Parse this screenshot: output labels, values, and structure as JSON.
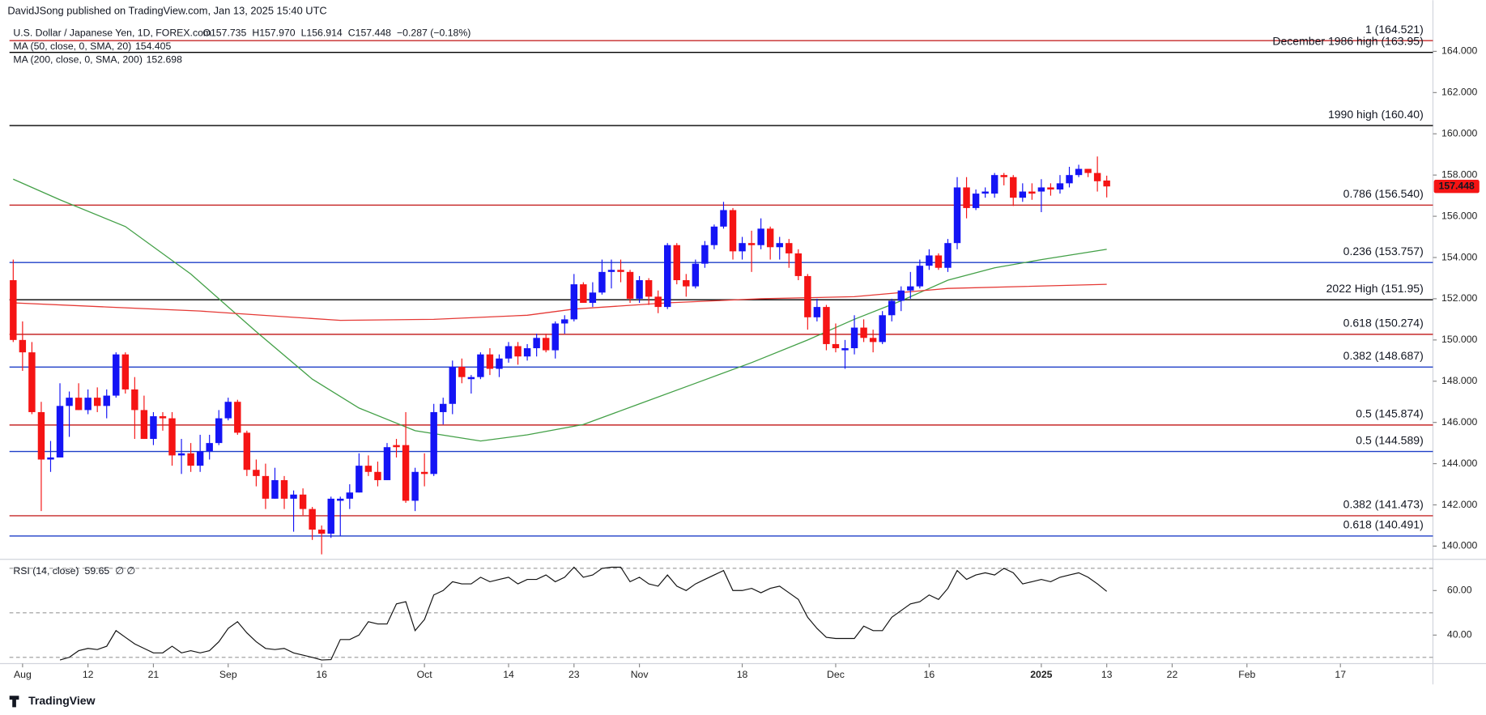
{
  "header": {
    "publisher": "DavidJSong published on TradingView.com, Jan 13, 2025 15:40 UTC",
    "footer": "TradingView"
  },
  "chart_data": {
    "type": "candlestick",
    "title": "U.S. Dollar / Japanese Yen, 1D, FOREX.com",
    "quote": [
      "O157.735",
      "H157.970",
      "L156.914",
      "C157.448",
      "−0.287 (−0.18%)"
    ],
    "colors": {
      "up": "#1414f5",
      "down": "#f51414"
    },
    "xlim": [
      -0.4,
      151.9
    ],
    "xticks": [
      {
        "value": 1,
        "label": "Aug"
      },
      {
        "value": 8,
        "label": "12"
      },
      {
        "value": 15,
        "label": "21"
      },
      {
        "value": 23,
        "label": "Sep"
      },
      {
        "value": 33,
        "label": "16"
      },
      {
        "value": 44,
        "label": "Oct"
      },
      {
        "value": 53,
        "label": "14"
      },
      {
        "value": 60,
        "label": "23"
      },
      {
        "value": 67,
        "label": "Nov"
      },
      {
        "value": 78,
        "label": "18"
      },
      {
        "value": 88,
        "label": "Dec"
      },
      {
        "value": 98,
        "label": "16"
      },
      {
        "value": 110,
        "label": "2025"
      },
      {
        "value": 117,
        "label": "13"
      },
      {
        "value": 124,
        "label": "22"
      },
      {
        "value": 132,
        "label": "Feb"
      },
      {
        "value": 142,
        "label": "17"
      }
    ],
    "ylim": [
      139.45,
      165.56
    ],
    "yticks": [
      {
        "value": 140,
        "label": "140.000"
      },
      {
        "value": 142,
        "label": "142.000"
      },
      {
        "value": 144,
        "label": "144.000"
      },
      {
        "value": 146,
        "label": "146.000"
      },
      {
        "value": 148,
        "label": "148.000"
      },
      {
        "value": 150,
        "label": "150.000"
      },
      {
        "value": 152,
        "label": "152.000"
      },
      {
        "value": 154,
        "label": "154.000"
      },
      {
        "value": 156,
        "label": "156.000"
      },
      {
        "value": 158,
        "label": "158.000"
      },
      {
        "value": 160,
        "label": "160.000"
      },
      {
        "value": 162,
        "label": "162.000"
      },
      {
        "value": 164,
        "label": "164.000"
      }
    ],
    "ohlc": [
      [
        152.9,
        153.9,
        149.9,
        150.0
      ],
      [
        150.0,
        150.9,
        148.5,
        149.4
      ],
      [
        149.4,
        149.9,
        146.4,
        146.5
      ],
      [
        146.5,
        147.0,
        141.7,
        144.2
      ],
      [
        144.2,
        145.1,
        143.6,
        144.3
      ],
      [
        144.3,
        147.9,
        144.3,
        146.8
      ],
      [
        146.8,
        147.5,
        145.3,
        147.2
      ],
      [
        147.2,
        147.9,
        146.6,
        146.6
      ],
      [
        146.6,
        147.6,
        146.4,
        147.2
      ],
      [
        147.2,
        147.7,
        146.5,
        146.8
      ],
      [
        146.8,
        147.6,
        146.2,
        147.3
      ],
      [
        147.3,
        149.4,
        147.2,
        149.3
      ],
      [
        149.3,
        149.4,
        147.4,
        147.6
      ],
      [
        147.6,
        148.2,
        145.2,
        146.6
      ],
      [
        146.6,
        147.3,
        145.2,
        145.2
      ],
      [
        145.2,
        146.5,
        144.9,
        146.3
      ],
      [
        146.3,
        146.5,
        145.6,
        146.2
      ],
      [
        146.2,
        146.5,
        143.9,
        144.4
      ],
      [
        144.4,
        145.2,
        143.5,
        144.5
      ],
      [
        144.5,
        145.0,
        143.6,
        143.9
      ],
      [
        143.9,
        145.4,
        143.6,
        144.6
      ],
      [
        144.6,
        145.4,
        144.2,
        145.0
      ],
      [
        145.0,
        146.6,
        144.9,
        146.2
      ],
      [
        146.2,
        147.2,
        146.1,
        147.0
      ],
      [
        147.0,
        147.1,
        145.4,
        145.5
      ],
      [
        145.5,
        145.6,
        143.4,
        143.7
      ],
      [
        143.7,
        144.2,
        142.9,
        143.4
      ],
      [
        143.4,
        144.0,
        141.8,
        142.3
      ],
      [
        142.3,
        143.8,
        142.3,
        143.2
      ],
      [
        143.2,
        143.4,
        141.8,
        142.3
      ],
      [
        142.3,
        142.7,
        140.7,
        142.5
      ],
      [
        142.5,
        142.8,
        141.5,
        141.8
      ],
      [
        141.8,
        141.9,
        140.3,
        140.8
      ],
      [
        140.8,
        141.0,
        139.6,
        140.6
      ],
      [
        140.6,
        142.4,
        140.4,
        142.3
      ],
      [
        142.2,
        142.4,
        140.5,
        142.3
      ],
      [
        142.3,
        143.0,
        141.8,
        142.6
      ],
      [
        142.6,
        144.5,
        142.6,
        143.9
      ],
      [
        143.9,
        144.4,
        143.4,
        143.6
      ],
      [
        143.6,
        144.1,
        142.9,
        143.2
      ],
      [
        143.2,
        145.0,
        143.2,
        144.8
      ],
      [
        144.9,
        145.2,
        144.3,
        144.8
      ],
      [
        144.9,
        146.5,
        142.1,
        142.2
      ],
      [
        142.2,
        143.8,
        141.7,
        143.6
      ],
      [
        143.6,
        144.5,
        142.9,
        143.5
      ],
      [
        143.5,
        146.9,
        143.4,
        146.5
      ],
      [
        146.5,
        147.2,
        145.9,
        146.9
      ],
      [
        146.9,
        149.0,
        146.4,
        148.7
      ],
      [
        148.7,
        149.1,
        147.9,
        148.2
      ],
      [
        148.1,
        148.3,
        147.4,
        148.2
      ],
      [
        148.2,
        149.4,
        148.1,
        149.3
      ],
      [
        149.3,
        149.6,
        148.3,
        148.6
      ],
      [
        148.6,
        149.3,
        148.2,
        149.1
      ],
      [
        149.1,
        149.9,
        148.9,
        149.7
      ],
      [
        149.7,
        149.9,
        148.8,
        149.2
      ],
      [
        149.2,
        149.8,
        149.0,
        149.6
      ],
      [
        149.6,
        150.3,
        149.2,
        150.1
      ],
      [
        150.1,
        150.3,
        149.4,
        149.5
      ],
      [
        149.5,
        150.9,
        149.1,
        150.8
      ],
      [
        150.8,
        151.2,
        150.3,
        151.0
      ],
      [
        151.0,
        153.2,
        150.9,
        152.7
      ],
      [
        152.7,
        152.8,
        151.8,
        151.8
      ],
      [
        151.8,
        152.8,
        151.6,
        152.3
      ],
      [
        152.3,
        153.9,
        152.2,
        153.3
      ],
      [
        153.3,
        153.9,
        152.5,
        153.4
      ],
      [
        153.4,
        153.9,
        152.8,
        153.3
      ],
      [
        153.3,
        153.4,
        151.8,
        152.0
      ],
      [
        152.0,
        153.1,
        151.8,
        152.9
      ],
      [
        152.9,
        153.0,
        151.7,
        152.1
      ],
      [
        152.1,
        152.4,
        151.3,
        151.6
      ],
      [
        151.6,
        154.7,
        151.5,
        154.6
      ],
      [
        154.6,
        154.7,
        152.7,
        152.9
      ],
      [
        152.9,
        153.2,
        152.1,
        152.6
      ],
      [
        152.6,
        153.9,
        152.5,
        153.7
      ],
      [
        153.7,
        154.8,
        153.5,
        154.6
      ],
      [
        154.6,
        155.6,
        154.4,
        155.5
      ],
      [
        155.5,
        156.7,
        155.4,
        156.3
      ],
      [
        156.3,
        156.4,
        153.9,
        154.3
      ],
      [
        154.3,
        155.0,
        153.9,
        154.7
      ],
      [
        154.7,
        155.3,
        153.3,
        154.6
      ],
      [
        154.6,
        155.9,
        154.4,
        155.4
      ],
      [
        155.4,
        155.5,
        153.9,
        154.5
      ],
      [
        154.5,
        155.0,
        153.9,
        154.7
      ],
      [
        154.7,
        154.9,
        153.5,
        154.2
      ],
      [
        154.2,
        154.4,
        152.9,
        153.1
      ],
      [
        153.1,
        153.2,
        150.5,
        151.1
      ],
      [
        151.1,
        152.0,
        150.9,
        151.6
      ],
      [
        151.6,
        151.7,
        149.5,
        149.8
      ],
      [
        149.8,
        150.8,
        149.4,
        149.6
      ],
      [
        149.5,
        150.0,
        148.6,
        149.6
      ],
      [
        149.6,
        151.2,
        149.3,
        150.6
      ],
      [
        150.6,
        151.0,
        149.9,
        150.1
      ],
      [
        150.1,
        150.5,
        149.4,
        149.9
      ],
      [
        149.9,
        151.4,
        149.8,
        151.2
      ],
      [
        151.2,
        152.0,
        150.9,
        151.9
      ],
      [
        151.9,
        152.6,
        151.4,
        152.4
      ],
      [
        152.4,
        153.3,
        152.0,
        152.6
      ],
      [
        152.6,
        153.9,
        152.5,
        153.6
      ],
      [
        153.6,
        154.4,
        153.4,
        154.1
      ],
      [
        154.1,
        154.2,
        153.4,
        153.5
      ],
      [
        153.5,
        154.9,
        153.3,
        154.7
      ],
      [
        154.7,
        157.9,
        154.4,
        157.4
      ],
      [
        157.4,
        157.9,
        155.9,
        156.4
      ],
      [
        156.4,
        157.3,
        156.3,
        157.1
      ],
      [
        157.1,
        157.4,
        156.9,
        157.2
      ],
      [
        157.1,
        158.1,
        156.9,
        158.0
      ],
      [
        158.0,
        158.1,
        157.5,
        157.9
      ],
      [
        157.9,
        158.0,
        156.5,
        156.9
      ],
      [
        156.9,
        157.6,
        156.7,
        157.2
      ],
      [
        157.2,
        157.6,
        156.8,
        157.1
      ],
      [
        157.2,
        157.8,
        156.2,
        157.4
      ],
      [
        157.4,
        157.6,
        157.0,
        157.3
      ],
      [
        157.3,
        158.0,
        157.1,
        157.6
      ],
      [
        157.6,
        158.4,
        157.4,
        158.0
      ],
      [
        158.0,
        158.5,
        157.9,
        158.3
      ],
      [
        158.3,
        158.3,
        157.9,
        158.1
      ],
      [
        158.1,
        158.9,
        157.2,
        157.7
      ],
      [
        157.735,
        157.97,
        156.914,
        157.448
      ]
    ],
    "overlays": [
      {
        "name": "MA (50, close, 0, SMA, 20)",
        "last": "154.405",
        "color": "#43a047",
        "x": [
          0,
          5,
          12,
          19,
          26,
          32,
          37,
          43,
          50,
          55,
          61,
          67,
          73,
          79,
          85,
          90,
          95,
          100,
          105,
          110,
          117
        ],
        "values": [
          157.8,
          156.8,
          155.5,
          153.2,
          150.4,
          148.1,
          146.7,
          145.6,
          145.1,
          145.4,
          145.9,
          146.9,
          147.9,
          148.9,
          150.0,
          151.0,
          151.9,
          152.9,
          153.5,
          153.9,
          154.4
        ]
      },
      {
        "name": "MA (200, close, 0, SMA, 200)",
        "last": "152.698",
        "color": "#e53935",
        "x": [
          0,
          10,
          20,
          30,
          35,
          45,
          55,
          60,
          70,
          80,
          90,
          100,
          117
        ],
        "values": [
          151.8,
          151.6,
          151.4,
          151.1,
          150.95,
          151.0,
          151.2,
          151.5,
          151.8,
          152.0,
          152.1,
          152.5,
          152.7
        ]
      }
    ],
    "levels": [
      {
        "label": "1 (164.521)",
        "value": 164.521,
        "color": "#c62828"
      },
      {
        "label": "December 1986 high (163.95)",
        "value": 163.95,
        "color": "#000000"
      },
      {
        "label": "1990 high (160.40)",
        "value": 160.4,
        "color": "#000000"
      },
      {
        "label": "0.786 (156.540)",
        "value": 156.54,
        "color": "#c62828"
      },
      {
        "label": "0.236 (153.757)",
        "value": 153.757,
        "color": "#1e3fc8"
      },
      {
        "label": "2022 High (151.95)",
        "value": 151.95,
        "color": "#000000"
      },
      {
        "label": "0.618 (150.274)",
        "value": 150.274,
        "color": "#c62828"
      },
      {
        "label": "0.382 (148.687)",
        "value": 148.687,
        "color": "#1e3fc8"
      },
      {
        "label": "0.5 (145.874)",
        "value": 145.874,
        "color": "#c62828"
      },
      {
        "label": "0.5 (144.589)",
        "value": 144.589,
        "color": "#1e3fc8"
      },
      {
        "label": "0.382 (141.473)",
        "value": 141.473,
        "color": "#c62828"
      },
      {
        "label": "0.618 (140.491)",
        "value": 140.491,
        "color": "#1e3fc8"
      }
    ],
    "rsi": {
      "name": "RSI (14, close)",
      "last": "59.65",
      "extra": "∅ ∅",
      "color": "#111111",
      "ylim": [
        27.2,
        73.6
      ],
      "yticks": [
        {
          "value": 40,
          "label": "40.00"
        },
        {
          "value": 60,
          "label": "60.00"
        }
      ],
      "levels": [
        70,
        50,
        30
      ],
      "values": [
        null,
        null,
        null,
        null,
        null,
        28.8,
        30,
        33,
        34,
        33.5,
        35,
        42,
        39,
        36,
        34,
        32,
        32,
        35,
        32,
        33,
        32,
        33,
        37,
        43,
        46,
        41,
        37,
        34,
        33.5,
        34,
        32,
        31,
        30,
        28.8,
        29,
        38,
        38,
        40,
        46,
        45,
        45,
        54,
        55,
        42,
        47,
        58,
        60,
        64,
        63,
        63,
        66,
        64,
        65,
        66,
        63,
        65,
        65,
        67,
        64,
        66,
        70.5,
        66,
        67,
        70,
        70.5,
        70.5,
        64,
        66,
        63,
        62,
        67,
        62,
        60,
        63,
        65,
        67,
        69,
        60,
        60,
        61,
        59,
        61,
        62,
        59,
        56,
        48,
        43,
        39,
        38.5,
        38.5,
        38.5,
        44,
        42,
        42,
        48,
        51,
        54,
        55,
        58,
        56,
        61,
        69,
        65,
        67,
        68,
        67,
        70,
        68,
        63,
        64,
        65,
        64,
        66,
        67,
        68,
        66,
        63,
        59.65
      ]
    }
  }
}
